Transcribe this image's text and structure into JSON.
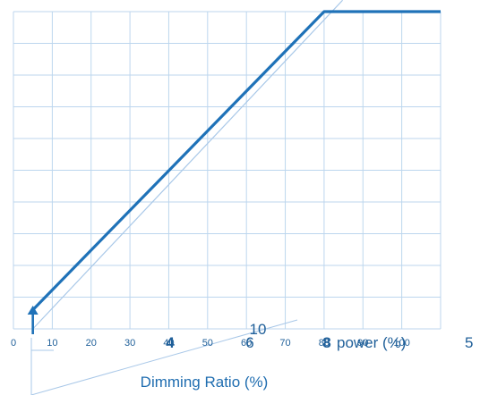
{
  "chart_data": {
    "type": "line",
    "title": "",
    "xlabel": "Dimming  Ratio (%)",
    "ylabel": "",
    "x_ticks": [
      "0",
      "10",
      "20",
      "30",
      "40",
      "50",
      "60",
      "70",
      "80",
      "90",
      "100"
    ],
    "xlim": [
      0,
      110
    ],
    "ylim": [
      0,
      100
    ],
    "grid": true,
    "overlay_labels": [
      "4",
      "6",
      "8",
      "10",
      "power (%)",
      "5"
    ],
    "series": [
      {
        "values": [
          {
            "x": 5,
            "y": 6
          },
          {
            "x": 80,
            "y": 100
          },
          {
            "x": 110,
            "y": 100
          }
        ],
        "color": "#1f72b8"
      },
      {
        "values": [
          {
            "x": 5,
            "y": 0
          },
          {
            "x": 82,
            "y": 100
          }
        ],
        "color": "#a9c8e8"
      }
    ],
    "marker": {
      "x": 5,
      "y": 0
    }
  }
}
